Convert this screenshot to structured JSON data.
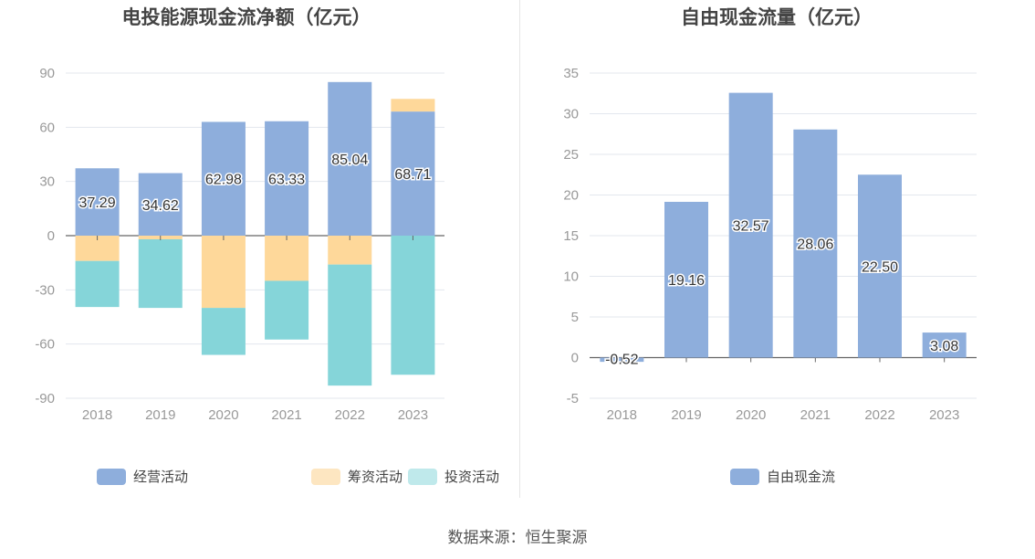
{
  "chart_data": [
    {
      "type": "bar",
      "stacked": true,
      "title": "电投能源现金流净额（亿元）",
      "categories": [
        "2018",
        "2019",
        "2020",
        "2021",
        "2022",
        "2023"
      ],
      "ylim": [
        -90,
        90
      ],
      "yticks": [
        90,
        60,
        30,
        0,
        -30,
        -60,
        -90
      ],
      "grid": true,
      "legend_position": "bottom",
      "series": [
        {
          "name": "经营活动",
          "color": "#8eaedc",
          "values": [
            37.29,
            34.62,
            62.98,
            63.33,
            85.04,
            68.71
          ],
          "labels": [
            "37.29",
            "34.62",
            "62.98",
            "63.33",
            "85.04",
            "68.71"
          ]
        },
        {
          "name": "筹资活动",
          "color": "#fed89a",
          "values": [
            -14,
            -2,
            -40,
            -25,
            -16,
            7
          ]
        },
        {
          "name": "投资活动",
          "color": "#85d5d9",
          "values": [
            -25.5,
            -38,
            -26,
            -32.5,
            -67,
            -77
          ]
        }
      ]
    },
    {
      "type": "bar",
      "title": "自由现金流量（亿元）",
      "categories": [
        "2018",
        "2019",
        "2020",
        "2021",
        "2022",
        "2023"
      ],
      "ylim": [
        -5,
        35
      ],
      "yticks": [
        35,
        30,
        25,
        20,
        15,
        10,
        5,
        0,
        -5
      ],
      "grid": true,
      "legend_position": "bottom",
      "series": [
        {
          "name": "自由现金流",
          "color": "#8eaedc",
          "values": [
            -0.52,
            19.16,
            32.57,
            28.06,
            22.5,
            3.08
          ],
          "labels": [
            "-0.52",
            "19.16",
            "32.57",
            "28.06",
            "22.50",
            "3.08"
          ]
        }
      ]
    }
  ],
  "source_text": "数据来源：恒生聚源"
}
